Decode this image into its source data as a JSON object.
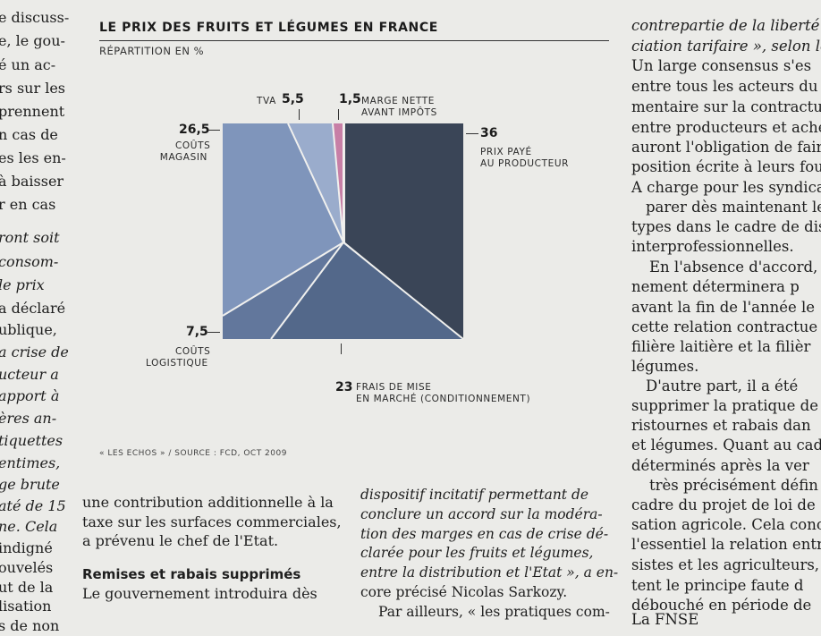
{
  "left_column_lines": [
    {
      "t": "e discuss-",
      "i": false
    },
    {
      "t": "e, le gou-",
      "i": false
    },
    {
      "t": "é un ac-",
      "i": false
    },
    {
      "t": "rs sur les",
      "i": false
    },
    {
      "t": "prennent",
      "i": false
    },
    {
      "t": "n cas de",
      "i": false
    },
    {
      "t": "es les en-",
      "i": false
    },
    {
      "t": "à baisser",
      "i": false
    },
    {
      "t": "r en cas",
      "i": false
    },
    {
      "t": "",
      "i": false
    },
    {
      "t": "ront soit",
      "i": true
    },
    {
      "t": "consom-",
      "i": true
    },
    {
      "t": "le prix",
      "i": true
    },
    {
      "t": "a déclaré",
      "i": false
    },
    {
      "t": "ublique,",
      "i": false
    },
    {
      "t": "a crise de",
      "i": true
    },
    {
      "t": "ucteur a",
      "i": true
    },
    {
      "t": "apport à",
      "i": true
    },
    {
      "t": "ères an-",
      "i": true
    },
    {
      "t": "tiquettes",
      "i": true
    },
    {
      "t": "entimes,",
      "i": true
    },
    {
      "t": "ge brute",
      "i": true
    },
    {
      "t": "até de 15",
      "i": true
    },
    {
      "t": "ne. Cela",
      "i": true
    },
    {
      "t": "indigné",
      "i": false
    },
    {
      "t": "",
      "i": false
    },
    {
      "t": "ouvelés",
      "i": false
    },
    {
      "t": "ut de la",
      "i": false
    },
    {
      "t": "lisation",
      "i": false
    },
    {
      "t": "s de non",
      "i": false
    }
  ],
  "right_column_lines": [
    {
      "t": "contrepartie de la liberté",
      "i": true
    },
    {
      "t": "ciation tarifaire », selon le p",
      "i": true
    },
    {
      "t": "Un large consensus s'es",
      "i": false
    },
    {
      "t": "entre tous les acteurs du m",
      "i": false
    },
    {
      "t": "mentaire sur la contractu",
      "i": false
    },
    {
      "t": "entre producteurs et achet",
      "i": false
    },
    {
      "t": "auront l'obligation de faire",
      "i": false
    },
    {
      "t": "position écrite à leurs four",
      "i": false
    },
    {
      "t": "A charge pour les syndicat",
      "i": false
    },
    {
      "t": "parer dès maintenant les",
      "i": false
    },
    {
      "t": "types dans le cadre de dis",
      "i": false
    },
    {
      "t": "interprofessionnelles.",
      "i": false
    },
    {
      "t": "En l'absence d'accord, l",
      "i": false
    },
    {
      "t": "nement déterminera p",
      "i": false
    },
    {
      "t": "avant la fin de l'année le",
      "i": false
    },
    {
      "t": "cette relation contractue",
      "i": false
    },
    {
      "t": "filière laitière et la filièr",
      "i": false
    },
    {
      "t": "légumes.",
      "i": false
    },
    {
      "t": "D'autre part, il a été",
      "i": false
    },
    {
      "t": "supprimer la pratique de",
      "i": false
    },
    {
      "t": "ristournes et rabais dan",
      "i": false
    },
    {
      "t": "et légumes. Quant au cad",
      "i": false
    },
    {
      "t": "déterminés après la ver",
      "i": false
    },
    {
      "t": "très précisément défin",
      "i": false
    },
    {
      "t": "cadre du projet de loi de",
      "i": false
    },
    {
      "t": "sation agricole. Cela conc",
      "i": false
    },
    {
      "t": "l'essentiel la relation entr",
      "i": false
    },
    {
      "t": "sistes et les agriculteurs,",
      "i": false
    },
    {
      "t": "tent le principe faute d",
      "i": false
    },
    {
      "t": "débouché en période de",
      "i": false
    },
    {
      "t": "La FNSE",
      "i": false
    }
  ],
  "figure": {
    "title": "LE PRIX DES FRUITS ET LÉGUMES EN FRANCE",
    "subtitle": "RÉPARTITION EN %",
    "source": "« LES ECHOS » / SOURCE : FCD, OCT 2009",
    "labels": {
      "couts_magasin_value": "26,5",
      "couts_magasin_l1": "COÛTS",
      "couts_magasin_l2": "MAGASIN",
      "tva_text": "TVA",
      "tva_value": "5,5",
      "marge_value": "1,5",
      "marge_l1": "MARGE NETTE",
      "marge_l2": "AVANT IMPÔTS",
      "prix_value": "36",
      "prix_l1": "PRIX PAYÉ",
      "prix_l2": "AU PRODUCTEUR",
      "logistique_value": "7,5",
      "logistique_l1": "COÛTS",
      "logistique_l2": "LOGISTIQUE",
      "frais_value": "23",
      "frais_l1": "FRAIS DE MISE",
      "frais_l2": "EN MARCHÉ (CONDITIONNEMENT)"
    }
  },
  "colors": {
    "prix_paye": "#3a4557",
    "frais_mise": "#53688a",
    "logistique": "#62779c",
    "magasin": "#7f95bb",
    "tva": "#9aaccc",
    "marge": "#c77fa6"
  },
  "body_mid": {
    "left_lines": [
      "une contribution additionnelle à la",
      "taxe sur les surfaces commerciales,",
      "a prévenu le chef de l'Etat."
    ],
    "subhead": "Remises et rabais supprimés",
    "after_subhead": "Le gouvernement introduira dès",
    "right_lines": [
      "dispositif incitatif permettant de",
      "conclure un accord sur la modéra-",
      "tion des marges en cas de crise dé-",
      "clarée pour les fruits et légumes,",
      "entre la distribution et l'Etat », a en-",
      "core précisé Nicolas Sarkozy.",
      "Par ailleurs, « les pratiques com-"
    ]
  }
}
